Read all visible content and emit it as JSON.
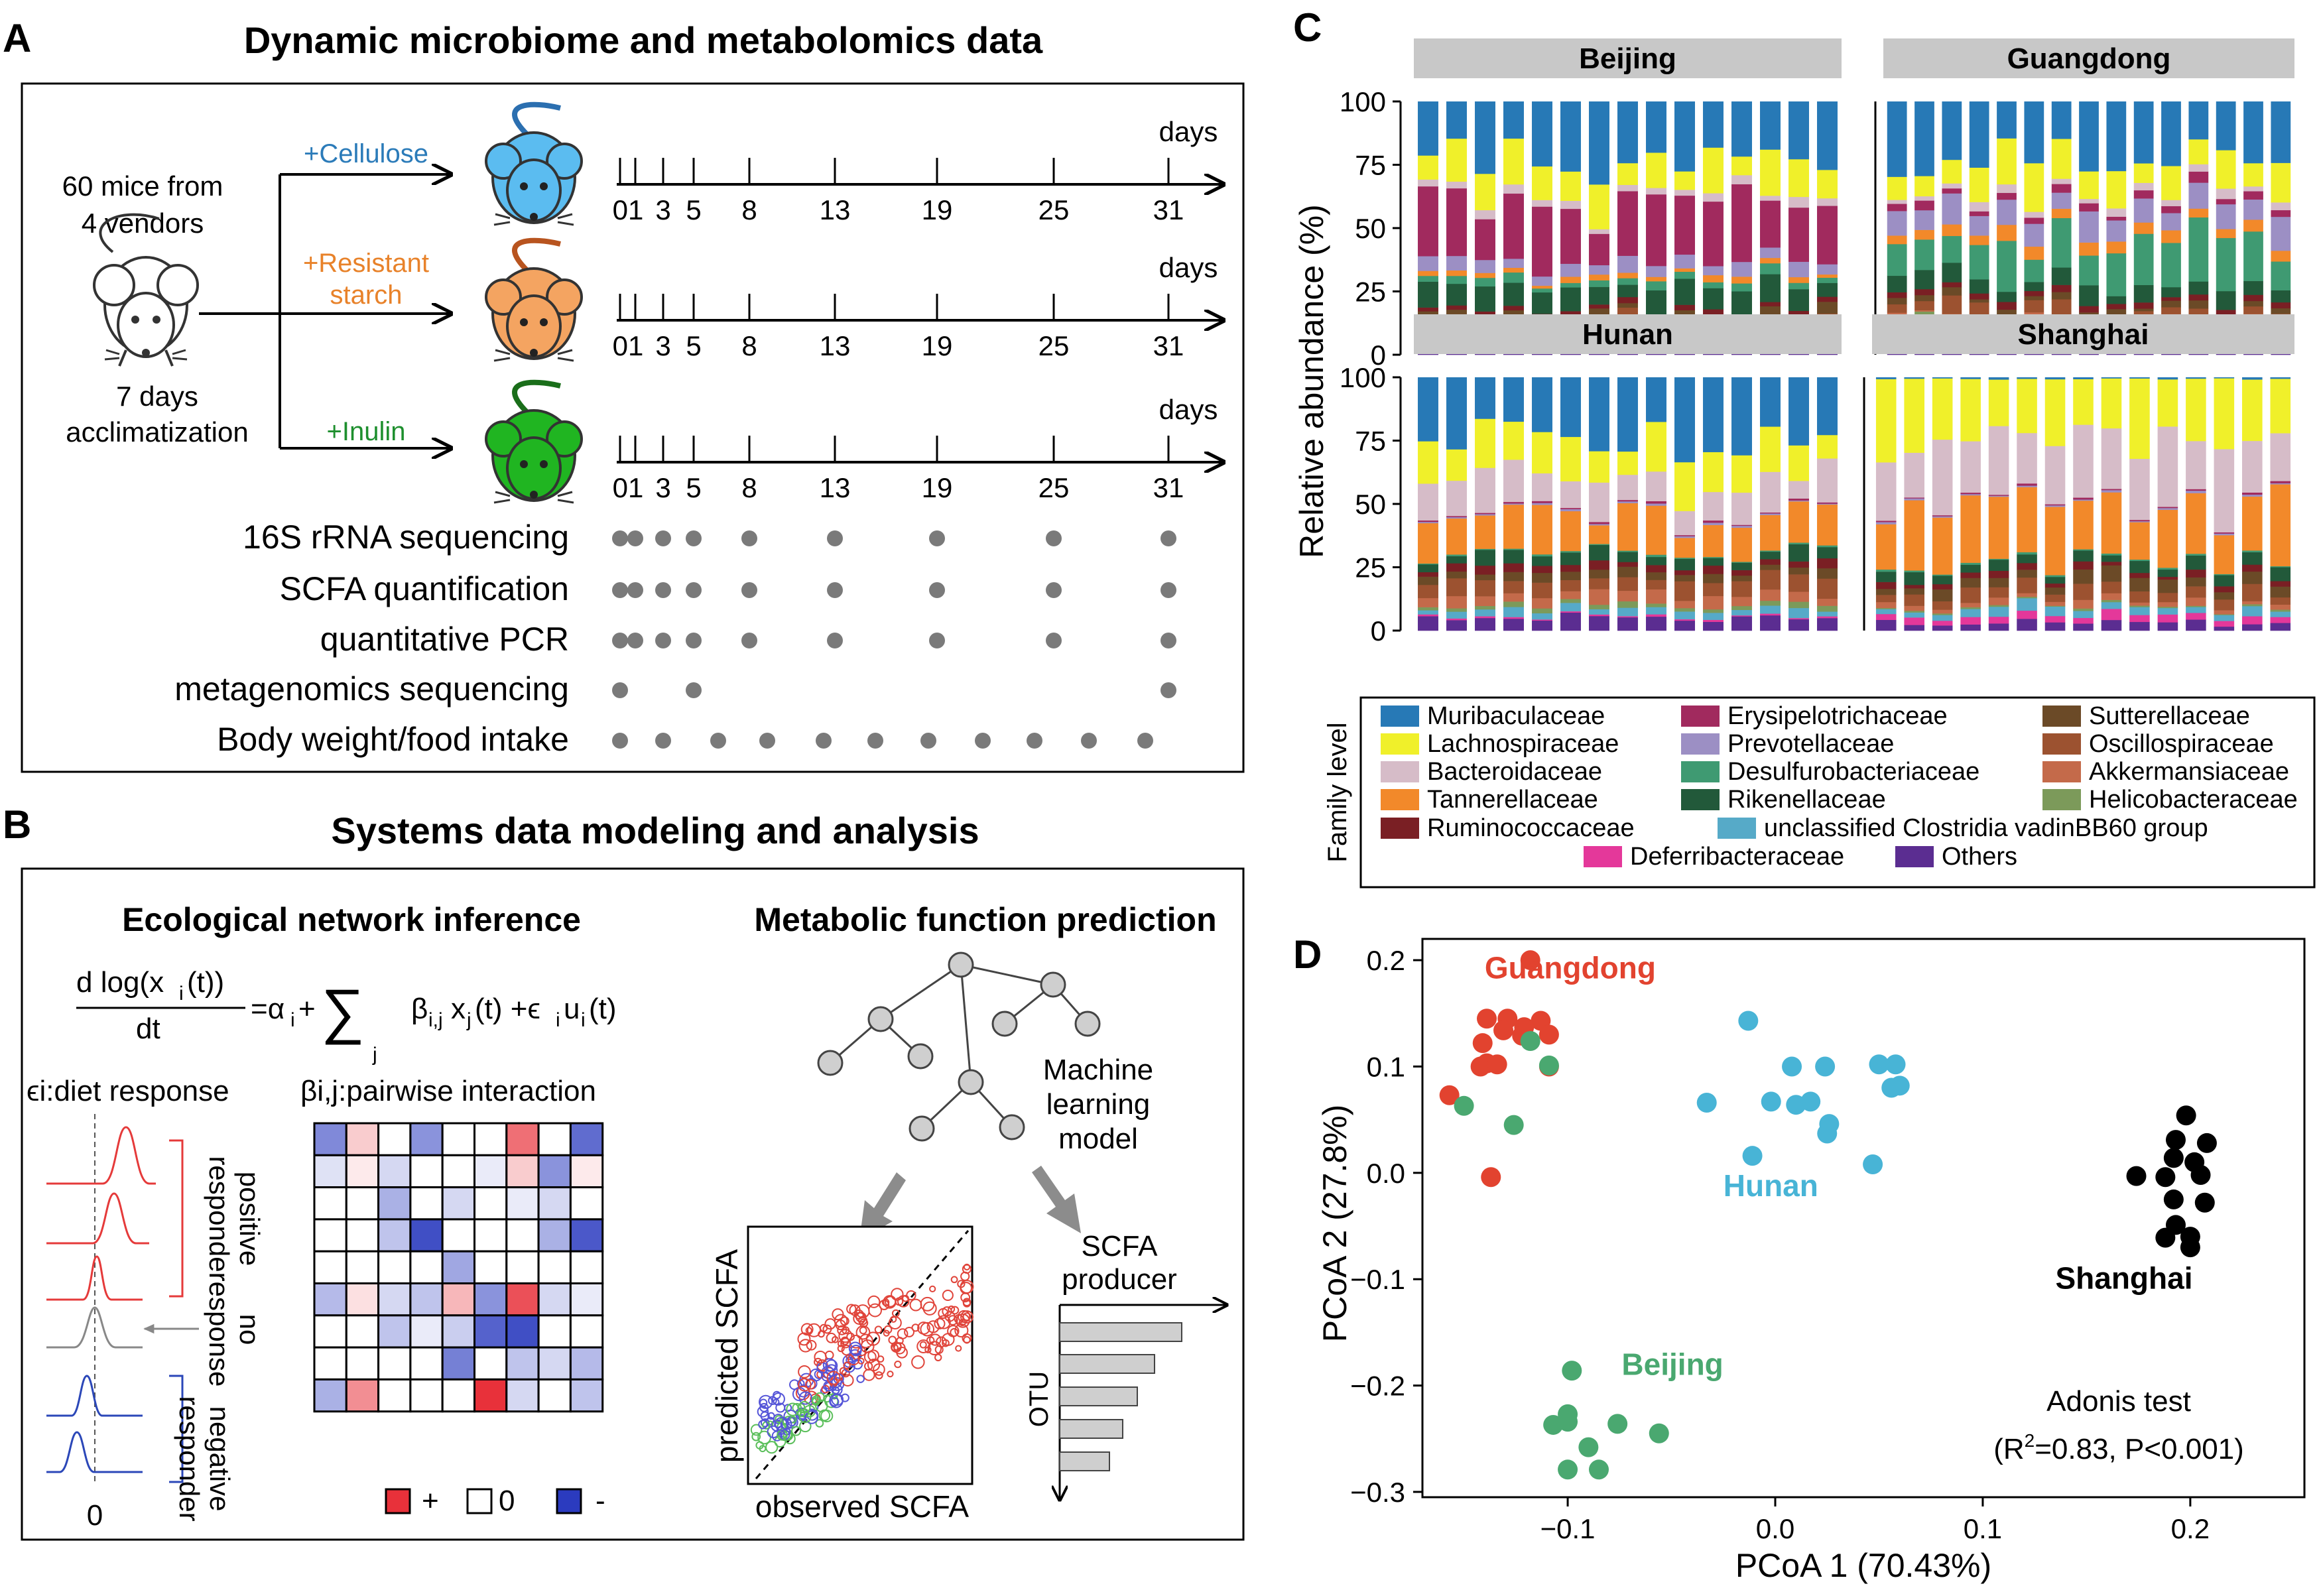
{
  "panel_a": {
    "letter": "A",
    "title": "Dynamic microbiome and metabolomics data",
    "source_line1": "60 mice from",
    "source_line2": "4 vendors",
    "acclim_line1": "7 days",
    "acclim_line2": "acclimatization",
    "diets": [
      {
        "line1": "+Cellulose",
        "line2": "",
        "color": "#2b7bb9",
        "mouse_color": "#5bbcf0",
        "tail_color": "#2b6fb0"
      },
      {
        "line1": "+Resistant",
        "line2": "starch",
        "color": "#e8822a",
        "mouse_color": "#f4a461",
        "tail_color": "#b8541f"
      },
      {
        "line1": "+Inulin",
        "line2": "",
        "color": "#1e8f2e",
        "mouse_color": "#20b521",
        "tail_color": "#1a6e1a"
      }
    ],
    "days_label": "days",
    "timepoints": [
      "0",
      "1",
      "3",
      "5",
      "8",
      "13",
      "19",
      "25",
      "31"
    ],
    "tick_labels": [
      "01",
      "3",
      "5",
      "8",
      "13",
      "19",
      "25",
      "31"
    ],
    "measurements": [
      {
        "label": "16S rRNA sequencing",
        "days": [
          "0",
          "1",
          "3",
          "5",
          "8",
          "13",
          "19",
          "25",
          "31"
        ]
      },
      {
        "label": "SCFA quantification",
        "days": [
          "0",
          "1",
          "3",
          "5",
          "8",
          "13",
          "19",
          "25",
          "31"
        ]
      },
      {
        "label": "quantitative PCR",
        "days": [
          "0",
          "1",
          "3",
          "5",
          "8",
          "13",
          "19",
          "25",
          "31"
        ]
      },
      {
        "label": "metagenomics sequencing",
        "days": [
          "0",
          "5",
          "31"
        ]
      },
      {
        "label": "Body weight/food intake",
        "days": [
          "0",
          "3",
          "6",
          "9",
          "12",
          "15",
          "18",
          "21",
          "24",
          "27",
          "30"
        ]
      }
    ]
  },
  "panel_b": {
    "letter": "B",
    "title": "Systems data modeling and analysis",
    "left_heading": "Ecological network inference",
    "right_heading": "Metabolic function prediction",
    "diet_response_label": "ϵi:diet response",
    "interaction_label": "βi,j:pairwise interaction",
    "positive_responder": [
      "positive",
      "responder"
    ],
    "no_response": [
      "no",
      "response"
    ],
    "negative_responder": [
      "negative",
      "responder"
    ],
    "zero_label": "0",
    "legend_plus": "+",
    "legend_zero": "0",
    "legend_minus": "-",
    "ml_label": [
      "Machine",
      "learning",
      "model"
    ],
    "scatter_xlabel": "observed SCFA",
    "scatter_ylabel": "predicted SCFA",
    "producer_label": [
      "SCFA",
      "producer"
    ],
    "otu_label": "OTU",
    "heatmap_colors": {
      "positive": "#e8313a",
      "zero": "#ffffff",
      "negative": "#2b3bbf"
    },
    "heatmap": [
      [
        -0.6,
        0.25,
        0,
        -0.55,
        0,
        0,
        0.7,
        0,
        -0.75
      ],
      [
        -0.15,
        0.1,
        -0.2,
        0,
        0,
        -0.1,
        0.25,
        -0.55,
        0.1
      ],
      [
        0,
        0,
        -0.4,
        0,
        -0.2,
        0,
        -0.1,
        -0.2,
        0
      ],
      [
        0,
        0,
        -0.3,
        -0.9,
        0,
        0,
        0,
        -0.4,
        -0.85
      ],
      [
        0,
        0,
        0,
        0,
        -0.45,
        0,
        0,
        0,
        0
      ],
      [
        -0.35,
        0.15,
        -0.2,
        -0.3,
        0.35,
        -0.55,
        0.85,
        -0.2,
        -0.1
      ],
      [
        0,
        0,
        -0.3,
        -0.1,
        -0.25,
        -0.8,
        -0.9,
        0,
        0
      ],
      [
        0,
        0,
        0,
        0,
        -0.65,
        0,
        -0.3,
        -0.2,
        -0.35
      ],
      [
        -0.4,
        0.55,
        0,
        0,
        0,
        1.0,
        -0.2,
        0,
        -0.3
      ]
    ]
  },
  "panel_c": {
    "letter": "C",
    "ylabel": "Relative abundance (%)",
    "y_ticks": [
      "0",
      "25",
      "50",
      "75",
      "100"
    ],
    "legend_title": "Family level",
    "families": [
      {
        "name": "Muribaculaceae",
        "color": "#2779b6"
      },
      {
        "name": "Lachnospiraceae",
        "color": "#f0f02a"
      },
      {
        "name": "Bacteroidaceae",
        "color": "#d6bcc8"
      },
      {
        "name": "Tannerellaceae",
        "color": "#f2892a"
      },
      {
        "name": "Ruminococcaceae",
        "color": "#7a1f24"
      },
      {
        "name": "Erysipelotrichaceae",
        "color": "#a12a5e"
      },
      {
        "name": "Prevotellaceae",
        "color": "#9c8fc4"
      },
      {
        "name": "Desulfurobacteriaceae",
        "color": "#3f9a72"
      },
      {
        "name": "Rikenellaceae",
        "color": "#22593a"
      },
      {
        "name": "unclassified Clostridia vadinBB60 group",
        "color": "#56aac8"
      },
      {
        "name": "Sutterellaceae",
        "color": "#6b4a27"
      },
      {
        "name": "Oscillospiraceae",
        "color": "#9c5230"
      },
      {
        "name": "Akkermansiaceae",
        "color": "#c46a4a"
      },
      {
        "name": "Helicobacteraceae",
        "color": "#7c9a5a"
      },
      {
        "name": "Deferribacteraceae",
        "color": "#e4389a"
      },
      {
        "name": "Others",
        "color": "#5b2d91"
      }
    ],
    "facets": [
      {
        "name": "Beijing",
        "n_bars": 15
      },
      {
        "name": "Guangdong",
        "n_bars": 15
      },
      {
        "name": "Hunan",
        "n_bars": 15
      },
      {
        "name": "Shanghai",
        "n_bars": 15
      }
    ]
  },
  "panel_d": {
    "letter": "D",
    "chart_data": {
      "type": "scatter",
      "xlabel": "PCoA 1 (70.43%)",
      "ylabel": "PCoA 2 (27.8%)",
      "xlim": [
        -0.17,
        0.255
      ],
      "ylim": [
        -0.305,
        0.22
      ],
      "x_ticks": [
        {
          "v": -0.1,
          "t": "−0.1"
        },
        {
          "v": 0.0,
          "t": "0.0"
        },
        {
          "v": 0.1,
          "t": "0.1"
        },
        {
          "v": 0.2,
          "t": "0.2"
        }
      ],
      "y_ticks": [
        {
          "v": 0.2,
          "t": "0.2"
        },
        {
          "v": 0.1,
          "t": "0.1"
        },
        {
          "v": 0.0,
          "t": "0.0"
        },
        {
          "v": -0.1,
          "t": "−0.1"
        },
        {
          "v": -0.2,
          "t": "−0.2"
        },
        {
          "v": -0.3,
          "t": "−0.3"
        }
      ],
      "series": [
        {
          "name": "Guangdong",
          "color": "#e2432f",
          "label_at": [
            -0.14,
            0.183
          ],
          "points": [
            [
              -0.118,
              0.2
            ],
            [
              -0.139,
              0.145
            ],
            [
              -0.129,
              0.145
            ],
            [
              -0.113,
              0.143
            ],
            [
              -0.121,
              0.137
            ],
            [
              -0.131,
              0.134
            ],
            [
              -0.109,
              0.13
            ],
            [
              -0.122,
              0.129
            ],
            [
              -0.141,
              0.122
            ],
            [
              -0.139,
              0.103
            ],
            [
              -0.142,
              0.1
            ],
            [
              -0.134,
              0.102
            ],
            [
              -0.109,
              0.1
            ],
            [
              -0.157,
              0.073
            ],
            [
              -0.137,
              -0.004
            ]
          ]
        },
        {
          "name": "Hunan",
          "color": "#48b4d6",
          "label_at": [
            -0.025,
            -0.022
          ],
          "points": [
            [
              -0.013,
              0.143
            ],
            [
              0.008,
              0.1
            ],
            [
              0.024,
              0.1
            ],
            [
              0.05,
              0.102
            ],
            [
              0.058,
              0.102
            ],
            [
              -0.033,
              0.066
            ],
            [
              -0.002,
              0.067
            ],
            [
              0.01,
              0.064
            ],
            [
              0.017,
              0.067
            ],
            [
              0.056,
              0.08
            ],
            [
              0.06,
              0.082
            ],
            [
              0.026,
              0.046
            ],
            [
              0.025,
              0.037
            ],
            [
              -0.011,
              0.016
            ],
            [
              0.047,
              0.008
            ]
          ]
        },
        {
          "name": "Beijing",
          "color": "#4aa870",
          "label_at": [
            -0.074,
            -0.19
          ],
          "points": [
            [
              -0.118,
              0.124
            ],
            [
              -0.109,
              0.101
            ],
            [
              -0.15,
              0.063
            ],
            [
              -0.126,
              0.045
            ],
            [
              -0.098,
              -0.186
            ],
            [
              -0.107,
              -0.237
            ],
            [
              -0.1,
              -0.234
            ],
            [
              -0.1,
              -0.227
            ],
            [
              -0.076,
              -0.236
            ],
            [
              -0.056,
              -0.245
            ],
            [
              -0.09,
              -0.258
            ],
            [
              -0.1,
              -0.279
            ],
            [
              -0.085,
              -0.279
            ]
          ]
        },
        {
          "name": "Shanghai",
          "color": "#000000",
          "label_at": [
            0.135,
            -0.109
          ],
          "points": [
            [
              0.198,
              0.054
            ],
            [
              0.193,
              0.031
            ],
            [
              0.208,
              0.028
            ],
            [
              0.192,
              0.014
            ],
            [
              0.202,
              0.01
            ],
            [
              0.174,
              -0.003
            ],
            [
              0.188,
              -0.004
            ],
            [
              0.205,
              -0.002
            ],
            [
              0.192,
              -0.025
            ],
            [
              0.207,
              -0.028
            ],
            [
              0.193,
              -0.049
            ],
            [
              0.188,
              -0.061
            ],
            [
              0.2,
              -0.06
            ],
            [
              0.2,
              -0.07
            ]
          ]
        }
      ],
      "annotation_line1": "Adonis test",
      "annotation_line2_prefix": "(R",
      "annotation_sup": "2",
      "annotation_line2_suffix": "=0.83, P<0.001)"
    }
  }
}
